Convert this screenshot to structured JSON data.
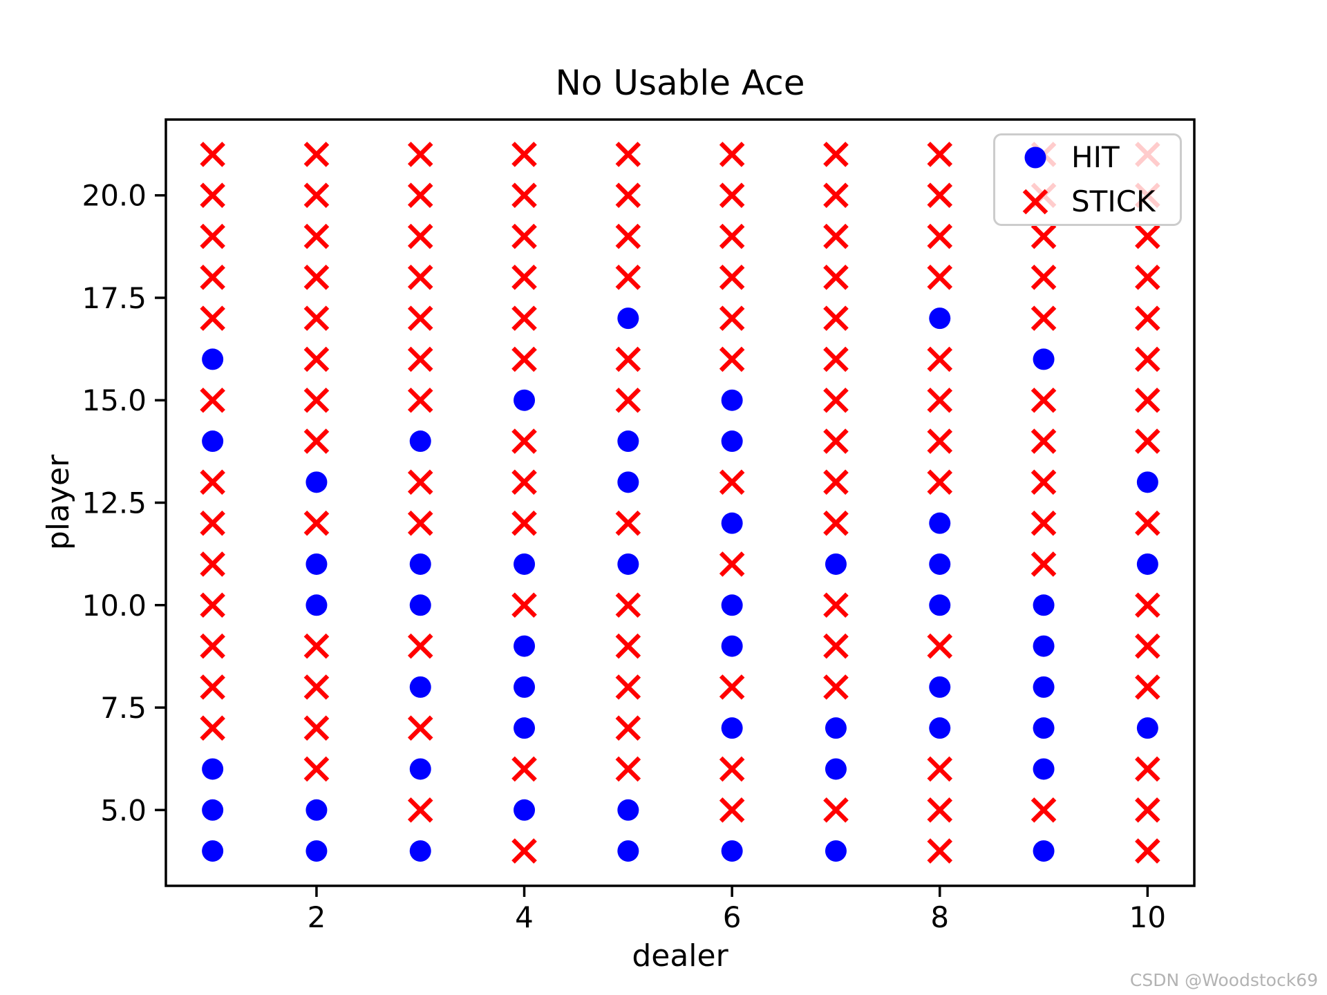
{
  "title": "No Usable Ace",
  "xlabel": "dealer",
  "ylabel": "player",
  "watermark": "CSDN @Woodstock69",
  "legend": {
    "hit_label": "HIT",
    "stick_label": "STICK"
  },
  "colors": {
    "hit": "#0000ff",
    "stick": "#ff0000",
    "axis": "#000000",
    "legend_border": "#cccccc",
    "watermark": "#b3b3b3"
  },
  "chart_data": {
    "type": "scatter",
    "title": "No Usable Ace",
    "xlabel": "dealer",
    "ylabel": "player",
    "legend_entries": [
      "HIT",
      "STICK"
    ],
    "legend_position": "upper right",
    "grid": false,
    "xlim": [
      0.55,
      10.45
    ],
    "ylim": [
      3.15,
      21.85
    ],
    "x_ticks": [
      2,
      4,
      6,
      8,
      10
    ],
    "y_ticks": [
      5.0,
      7.5,
      10.0,
      12.5,
      15.0,
      17.5,
      20.0
    ],
    "y_tick_labels": [
      "5.0",
      "7.5",
      "10.0",
      "12.5",
      "15.0",
      "17.5",
      "20.0"
    ],
    "dealers": [
      1,
      2,
      3,
      4,
      5,
      6,
      7,
      8,
      9,
      10
    ],
    "players": [
      4,
      5,
      6,
      7,
      8,
      9,
      10,
      11,
      12,
      13,
      14,
      15,
      16,
      17,
      18,
      19,
      20,
      21
    ],
    "policy_note": "H = HIT (blue filled circle), S = STICK (red x); array index = dealer 1..10",
    "policy": {
      "21": [
        "S",
        "S",
        "S",
        "S",
        "S",
        "S",
        "S",
        "S",
        "S",
        "S"
      ],
      "20": [
        "S",
        "S",
        "S",
        "S",
        "S",
        "S",
        "S",
        "S",
        "S",
        "S"
      ],
      "19": [
        "S",
        "S",
        "S",
        "S",
        "S",
        "S",
        "S",
        "S",
        "S",
        "S"
      ],
      "18": [
        "S",
        "S",
        "S",
        "S",
        "S",
        "S",
        "S",
        "S",
        "S",
        "S"
      ],
      "17": [
        "S",
        "S",
        "S",
        "S",
        "H",
        "S",
        "S",
        "H",
        "S",
        "S"
      ],
      "16": [
        "H",
        "S",
        "S",
        "S",
        "S",
        "S",
        "S",
        "S",
        "H",
        "S"
      ],
      "15": [
        "S",
        "S",
        "S",
        "H",
        "S",
        "H",
        "S",
        "S",
        "S",
        "S"
      ],
      "14": [
        "H",
        "S",
        "H",
        "S",
        "H",
        "H",
        "S",
        "S",
        "S",
        "S"
      ],
      "13": [
        "S",
        "H",
        "S",
        "S",
        "H",
        "S",
        "S",
        "S",
        "S",
        "H"
      ],
      "12": [
        "S",
        "S",
        "S",
        "S",
        "S",
        "H",
        "S",
        "H",
        "S",
        "S"
      ],
      "11": [
        "S",
        "H",
        "H",
        "H",
        "H",
        "S",
        "H",
        "H",
        "S",
        "H"
      ],
      "10": [
        "S",
        "H",
        "H",
        "S",
        "S",
        "H",
        "S",
        "H",
        "H",
        "S"
      ],
      "9": [
        "S",
        "S",
        "S",
        "H",
        "S",
        "H",
        "S",
        "S",
        "H",
        "S"
      ],
      "8": [
        "S",
        "S",
        "H",
        "H",
        "S",
        "S",
        "S",
        "H",
        "H",
        "S"
      ],
      "7": [
        "S",
        "S",
        "S",
        "H",
        "S",
        "H",
        "H",
        "H",
        "H",
        "H"
      ],
      "6": [
        "H",
        "S",
        "H",
        "S",
        "S",
        "S",
        "H",
        "S",
        "H",
        "S"
      ],
      "5": [
        "H",
        "H",
        "S",
        "H",
        "H",
        "S",
        "S",
        "S",
        "S",
        "S"
      ],
      "4": [
        "H",
        "H",
        "H",
        "S",
        "H",
        "H",
        "H",
        "S",
        "H",
        "S"
      ]
    }
  }
}
